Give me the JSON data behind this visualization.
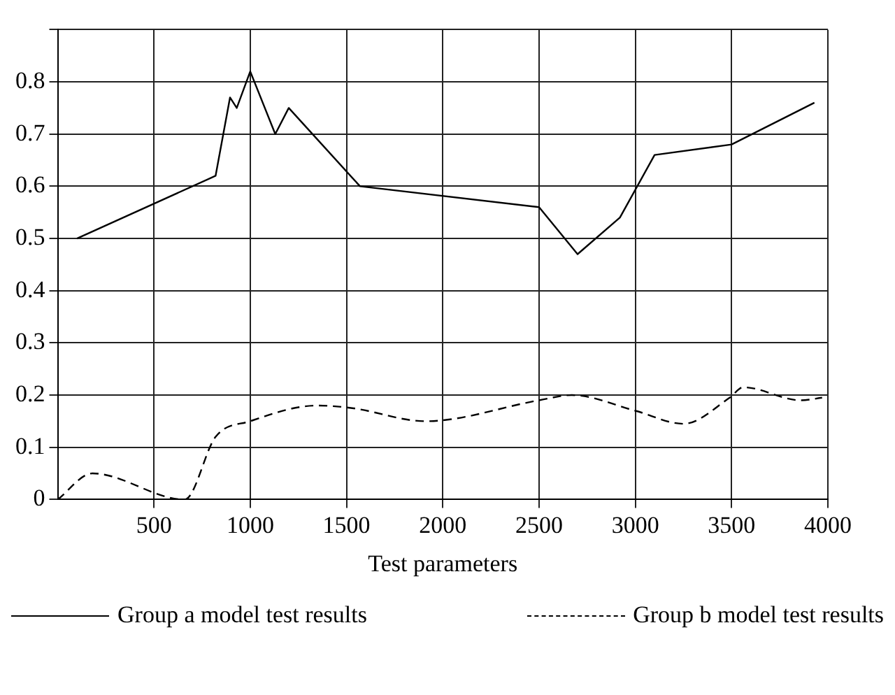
{
  "chart_data": {
    "type": "line",
    "xlabel": "Test parameters",
    "xlim": [
      0,
      4000
    ],
    "xticks": [
      500,
      1000,
      1500,
      2000,
      2500,
      3000,
      3500,
      4000
    ],
    "ylim": [
      0,
      0.9
    ],
    "yticks": [
      0,
      0.1,
      0.2,
      0.3,
      0.4,
      0.5,
      0.6,
      0.7,
      0.8,
      {
        "value": 0.9,
        "label": null
      }
    ],
    "grid": true,
    "legend": "bottom",
    "marker": "none",
    "series": [
      {
        "name": "Group a model test results",
        "color": "#000000",
        "line_style": "solid",
        "x": [
          100,
          820,
          895,
          930,
          1000,
          1130,
          1200,
          1570,
          2500,
          2700,
          2920,
          3100,
          3500,
          3930
        ],
        "values": [
          0.5,
          0.62,
          0.77,
          0.75,
          0.82,
          0.7,
          0.75,
          0.6,
          0.56,
          0.47,
          0.54,
          0.66,
          0.68,
          0.76
        ]
      },
      {
        "name": "Group b model test results",
        "color": "#000000",
        "line_style": "dashed",
        "x": [
          0,
          180,
          660,
          820,
          1000,
          1350,
          1530,
          1910,
          2500,
          2670,
          3000,
          3250,
          3490,
          3560,
          3860,
          3970
        ],
        "values": [
          0,
          0.05,
          0,
          0.12,
          0.15,
          0.18,
          0.175,
          0.15,
          0.19,
          0.2,
          0.17,
          0.145,
          0.195,
          0.215,
          0.19,
          0.195
        ]
      }
    ]
  }
}
